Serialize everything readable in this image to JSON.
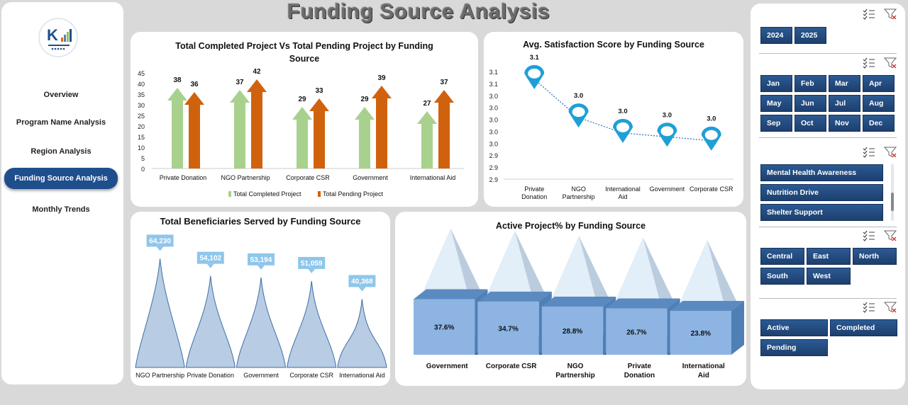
{
  "page_title": "Funding Source Analysis",
  "nav": {
    "items": [
      {
        "label": "Overview"
      },
      {
        "label": "Program Name Analysis"
      },
      {
        "label": "Region Analysis"
      },
      {
        "label": "Funding Source Analysis",
        "active": true
      },
      {
        "label": "Monthly Trends"
      }
    ]
  },
  "charts": {
    "completed_pending": {
      "title": "Total Completed Project Vs Total Pending Project by Funding Source"
    },
    "satisfaction": {
      "title": "Avg. Satisfaction Score by Funding Source"
    },
    "beneficiaries": {
      "title": "Total Beneficiaries Served by Funding Source"
    },
    "active_pct": {
      "title": "Active Project% by Funding Source"
    }
  },
  "chart_data": [
    {
      "type": "bar",
      "title": "Total Completed Project Vs Total Pending Project by Funding Source",
      "categories": [
        "Private Donation",
        "NGO Partnership",
        "Corporate CSR",
        "Government",
        "International Aid"
      ],
      "series": [
        {
          "name": "Total Completed Project",
          "values": [
            38,
            37,
            29,
            29,
            27
          ],
          "color": "#a9d18e"
        },
        {
          "name": "Total Pending Project",
          "values": [
            36,
            42,
            33,
            39,
            37
          ],
          "color": "#d0620e"
        }
      ],
      "ylim": [
        0,
        45
      ],
      "yticks": [
        "0",
        "5",
        "10",
        "15",
        "20",
        "25",
        "30",
        "35",
        "40",
        "45"
      ],
      "legend": "bottom"
    },
    {
      "type": "line",
      "title": "Avg. Satisfaction Score by Funding Source",
      "categories": [
        "Private Donation",
        "NGO Partnership",
        "International Aid",
        "Government",
        "Corporate CSR"
      ],
      "values": [
        3.12,
        3.02,
        2.98,
        2.97,
        2.96
      ],
      "data_labels": [
        "3.1",
        "3.0",
        "3.0",
        "3.0",
        "3.0"
      ],
      "yticks": [
        "2.9",
        "2.9",
        "2.9",
        "3.0",
        "3.0",
        "3.0",
        "3.0",
        "3.0",
        "3.1",
        "3.1"
      ],
      "ylim": [
        2.86,
        3.14
      ],
      "color": "#1f9fd6"
    },
    {
      "type": "area",
      "title": "Total Beneficiaries Served by Funding Source",
      "categories": [
        "NGO Partnership",
        "Private Donation",
        "Government",
        "Corporate CSR",
        "International Aid"
      ],
      "values": [
        64230,
        54102,
        53194,
        51059,
        40368
      ],
      "data_labels": [
        "64,230",
        "54,102",
        "53,194",
        "51,059",
        "40,368"
      ],
      "ylim": [
        0,
        70000
      ],
      "color": "#b8cce4"
    },
    {
      "type": "bar",
      "title": "Active Project% by Funding Source",
      "categories": [
        "Government",
        "Corporate CSR",
        "NGO Partnership",
        "Private Donation",
        "International Aid"
      ],
      "values": [
        37.6,
        34.7,
        28.8,
        26.7,
        23.8
      ],
      "data_labels": [
        "37.6%",
        "34.7%",
        "28.8%",
        "26.7%",
        "23.8%"
      ],
      "color": "#4f81bd"
    }
  ],
  "slicers": {
    "years": [
      "2024",
      "2025"
    ],
    "months": [
      "Jan",
      "Feb",
      "Mar",
      "Apr",
      "May",
      "Jun",
      "Jul",
      "Aug",
      "Sep",
      "Oct",
      "Nov",
      "Dec"
    ],
    "programs": [
      "Mental Health Awareness",
      "Nutrition Drive",
      "Shelter Support"
    ],
    "regions": [
      "Central",
      "East",
      "North",
      "South",
      "West"
    ],
    "statuses": [
      "Active",
      "Completed",
      "Pending"
    ]
  }
}
